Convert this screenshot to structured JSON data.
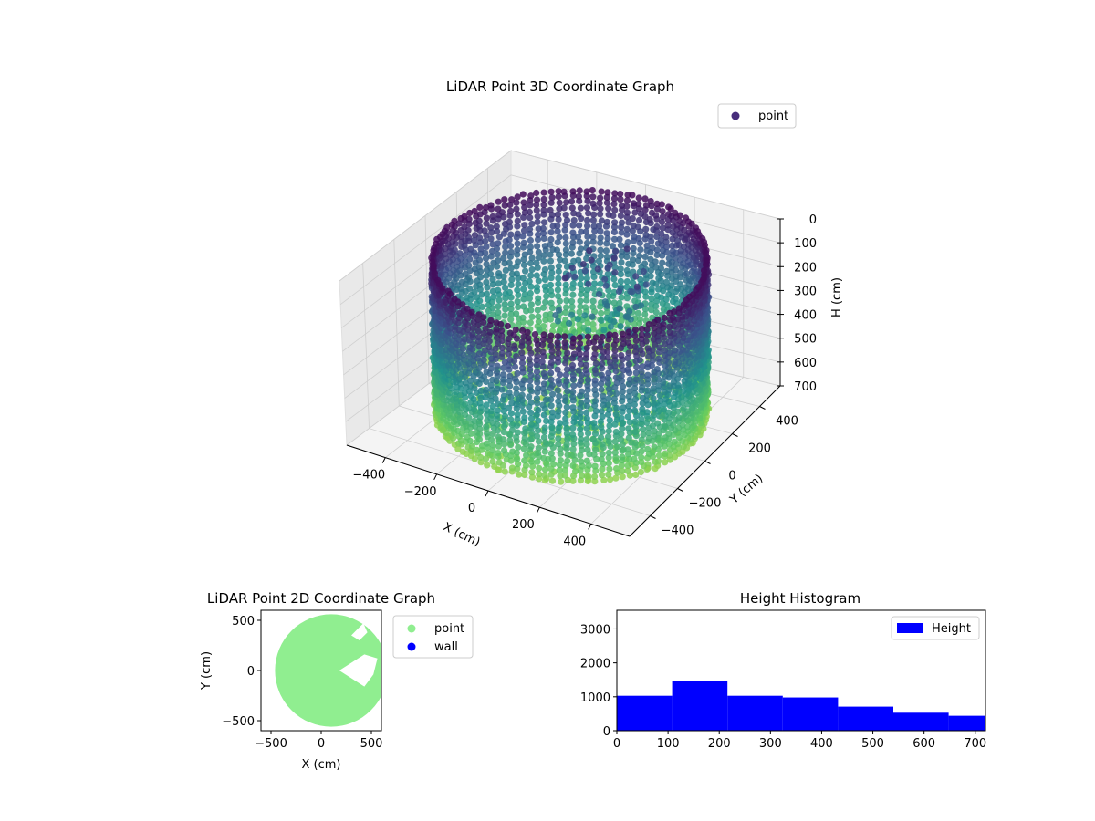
{
  "chart_data": [
    {
      "type": "scatter",
      "title": "LiDAR Point 3D Coordinate Graph",
      "xlabel": "X (cm)",
      "ylabel": "Y (cm)",
      "zlabel": "H (cm)",
      "xlim": [
        -550,
        550
      ],
      "ylim": [
        -550,
        550
      ],
      "zlim": [
        0,
        700
      ],
      "z_inverted": true,
      "x_ticks": [
        -400,
        -200,
        0,
        200,
        400
      ],
      "y_ticks": [
        -400,
        -200,
        0,
        200,
        400
      ],
      "z_ticks": [
        0,
        100,
        200,
        300,
        400,
        500,
        600,
        700
      ],
      "x_tick_labels": [
        "−400",
        "−200",
        "0",
        "200",
        "400"
      ],
      "y_tick_labels": [
        "−400",
        "−200",
        "0",
        "200",
        "400"
      ],
      "z_tick_labels": [
        "0",
        "100",
        "200",
        "300",
        "400",
        "500",
        "600",
        "700"
      ],
      "colormap": "viridis",
      "legend": {
        "placement": "top-right",
        "entries": [
          {
            "label": "point",
            "color": "#472d7b"
          }
        ]
      },
      "grid": true
    },
    {
      "type": "scatter",
      "title": "LiDAR Point 2D Coordinate Graph",
      "xlabel": "X (cm)",
      "ylabel": "Y (cm)",
      "xlim": [
        -600,
        600
      ],
      "ylim": [
        -600,
        600
      ],
      "x_ticks": [
        -500,
        0,
        500
      ],
      "y_ticks": [
        -500,
        0,
        500
      ],
      "x_tick_labels": [
        "−500",
        "0",
        "500"
      ],
      "y_tick_labels": [
        "−500",
        "0",
        "500"
      ],
      "series": [
        {
          "name": "point",
          "color": "#90ee90",
          "center": [
            100,
            0
          ],
          "radius": 560
        },
        {
          "name": "wall",
          "color": "#0000ff"
        }
      ],
      "legend": {
        "placement": "outside-right",
        "entries": [
          {
            "label": "point",
            "color": "#90ee90"
          },
          {
            "label": "wall",
            "color": "#0000ff"
          }
        ]
      },
      "grid": false
    },
    {
      "type": "bar",
      "subtype": "histogram",
      "title": "Height Histogram",
      "xlim": [
        0,
        720
      ],
      "ylim": [
        0,
        3550
      ],
      "x_ticks": [
        0,
        100,
        200,
        300,
        400,
        500,
        600,
        700
      ],
      "y_ticks": [
        0,
        1000,
        2000,
        3000
      ],
      "bin_edges": [
        0,
        108,
        216,
        324,
        432,
        540,
        648,
        720
      ],
      "values": [
        1030,
        1470,
        1030,
        980,
        710,
        530,
        440
      ],
      "color": "#0000ff",
      "legend": {
        "placement": "top-right",
        "entries": [
          {
            "label": "Height",
            "color": "#0000ff"
          }
        ]
      },
      "grid": false
    }
  ]
}
